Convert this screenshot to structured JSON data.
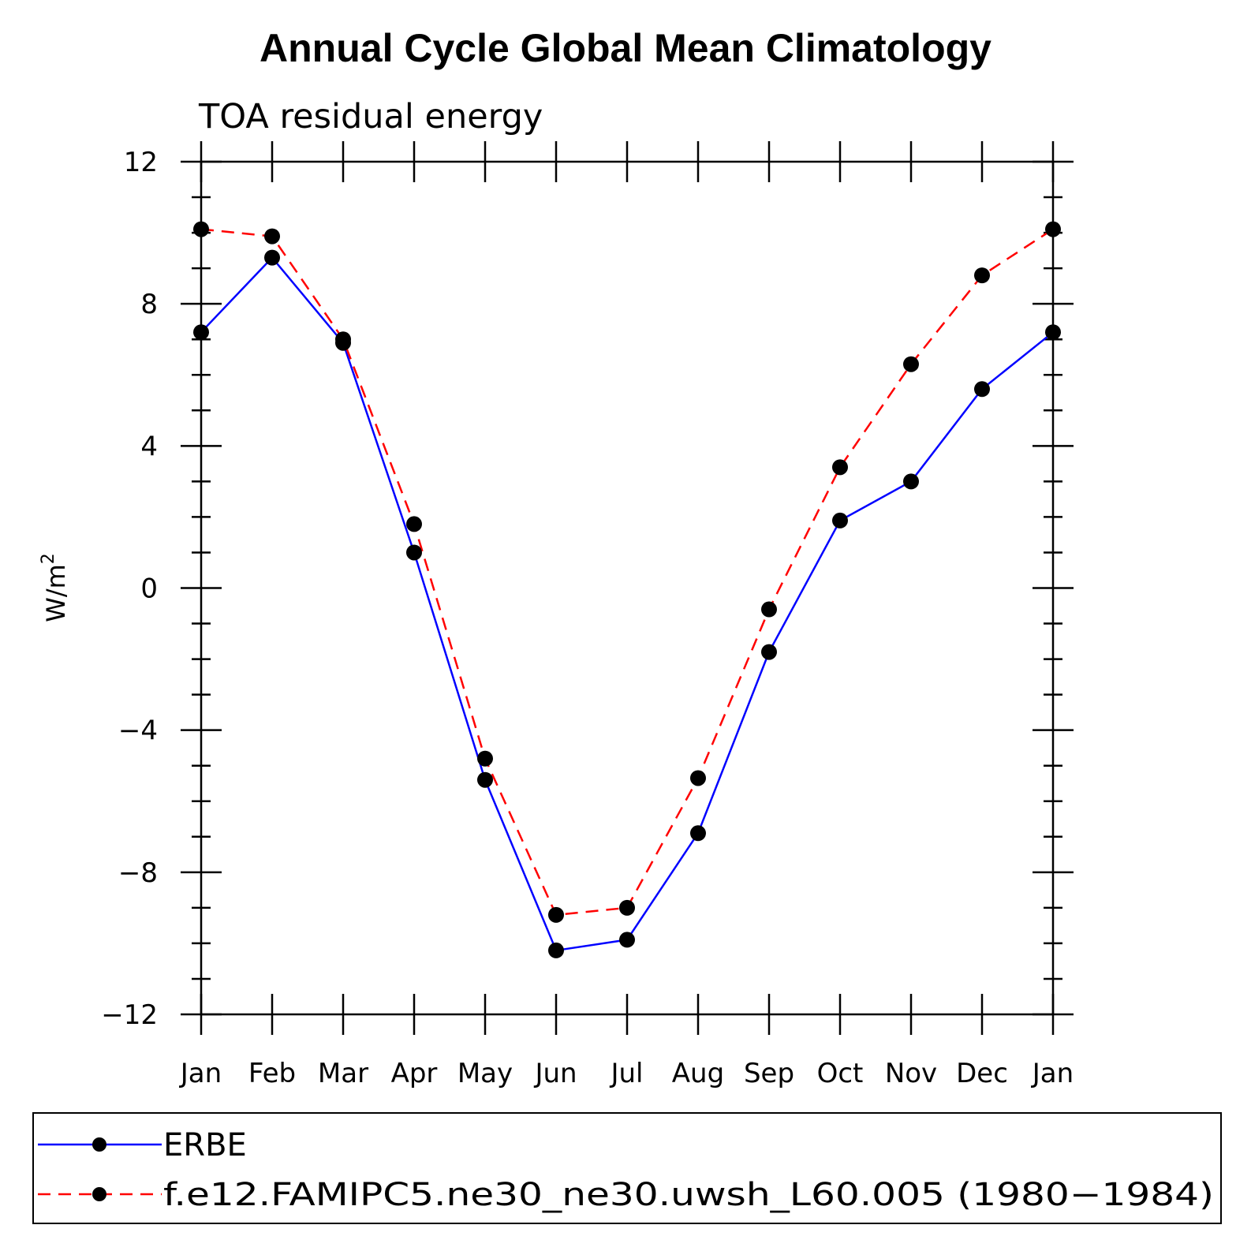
{
  "chart_data": {
    "type": "line",
    "title": "Annual Cycle Global Mean Climatology",
    "subtitle": "TOA residual energy",
    "xlabel": "",
    "ylabel": "W/m",
    "ylabel_superscript": "2",
    "categories": [
      "Jan",
      "Feb",
      "Mar",
      "Apr",
      "May",
      "Jun",
      "Jul",
      "Aug",
      "Sep",
      "Oct",
      "Nov",
      "Dec",
      "Jan"
    ],
    "ylim": [
      -12,
      12
    ],
    "yticks": [
      -12,
      -8,
      -4,
      0,
      4,
      8,
      12
    ],
    "ytick_labels": [
      "−12",
      "−8",
      "−4",
      "0",
      "4",
      "8",
      "12"
    ],
    "minor_step": 1,
    "grid": false,
    "legend_position": "bottom",
    "series": [
      {
        "name": "ERBE",
        "color": "#0000ff",
        "dash": "solid",
        "marker_color": "#000000",
        "values": [
          7.2,
          9.3,
          6.9,
          1.0,
          -5.4,
          -10.2,
          -9.9,
          -6.9,
          -1.8,
          1.9,
          3.0,
          5.6,
          7.2
        ]
      },
      {
        "name": "f.e12.FAMIPC5.ne30_ne30.uwsh_L60.005 (1980−1984)",
        "color": "#ff0000",
        "dash": "dashed",
        "marker_color": "#000000",
        "values": [
          10.1,
          9.9,
          7.0,
          1.8,
          -4.8,
          -9.2,
          -9.0,
          -5.35,
          -0.6,
          3.4,
          6.3,
          8.8,
          10.1
        ]
      }
    ]
  }
}
